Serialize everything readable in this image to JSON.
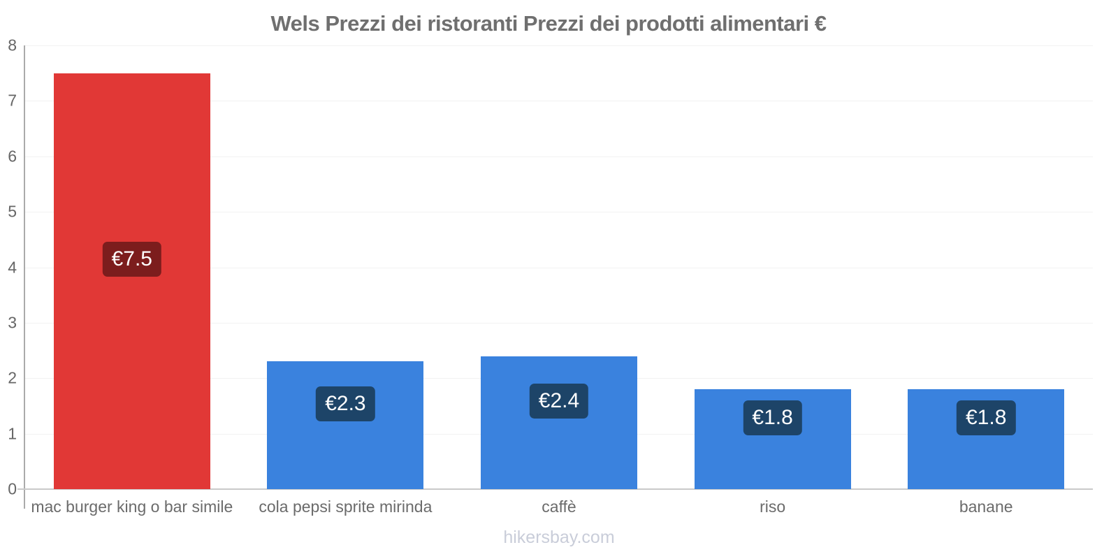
{
  "title": "Wels Prezzi dei ristoranti Prezzi dei prodotti alimentari €",
  "footer": "hikersbay.com",
  "chart_data": {
    "type": "bar",
    "title": "Wels Prezzi dei ristoranti Prezzi dei prodotti alimentari €",
    "categories": [
      "mac burger king o bar simile",
      "cola pepsi sprite mirinda",
      "caffè",
      "riso",
      "banane"
    ],
    "values": [
      7.5,
      2.3,
      2.4,
      1.8,
      1.8
    ],
    "value_labels": [
      "€7.5",
      "€2.3",
      "€2.4",
      "€1.8",
      "€1.8"
    ],
    "currency": "€",
    "xlabel": "",
    "ylabel": "",
    "ylim": [
      0,
      8
    ],
    "yticks": [
      0,
      1,
      2,
      3,
      4,
      5,
      6,
      7,
      8
    ],
    "grid": true,
    "legend": false,
    "bar_colors": [
      "#e13836",
      "#3a82de",
      "#3a82de",
      "#3a82de",
      "#3a82de"
    ],
    "value_label_bg": [
      "#7c1d1d",
      "#1d4468",
      "#1d4468",
      "#1d4468",
      "#1d4468"
    ],
    "watermark": "hikersbay.com"
  }
}
